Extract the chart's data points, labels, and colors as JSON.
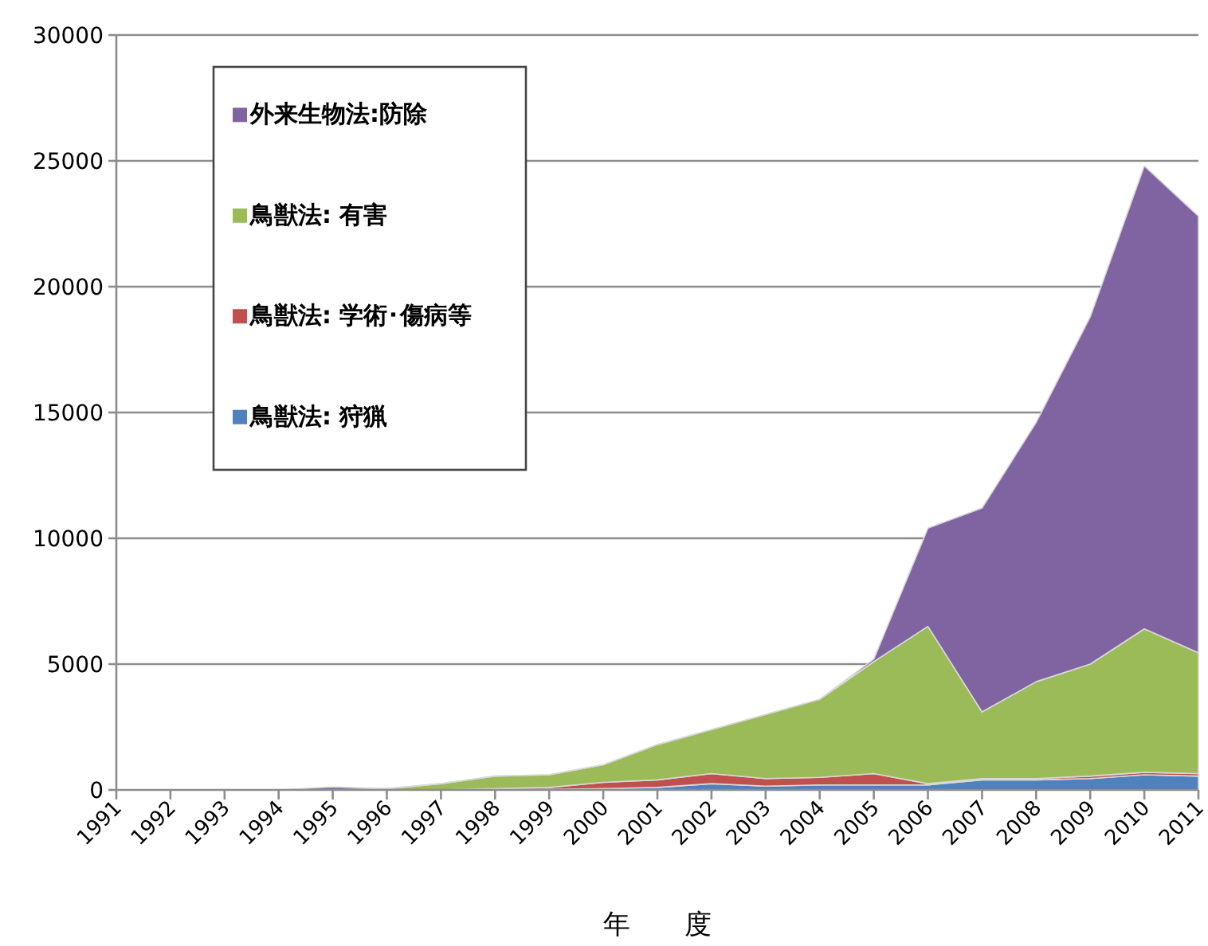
{
  "chart_data": {
    "type": "area",
    "stacked": true,
    "xlabel": "年　　度",
    "categories": [
      "1991",
      "1992",
      "1993",
      "1994",
      "1995",
      "1996",
      "1997",
      "1998",
      "1999",
      "2000",
      "2001",
      "2002",
      "2003",
      "2004",
      "2005",
      "2006",
      "2007",
      "2008",
      "2009",
      "2010",
      "2011"
    ],
    "series": [
      {
        "name": "鳥獣法: 狩猟",
        "color": "#4f81bd",
        "values": [
          0,
          0,
          0,
          0,
          0,
          0,
          0,
          0,
          20,
          50,
          100,
          250,
          150,
          200,
          200,
          200,
          400,
          400,
          450,
          600,
          550
        ]
      },
      {
        "name": "鳥獣法: 学術･傷病等",
        "color": "#c0504d",
        "values": [
          0,
          0,
          0,
          0,
          0,
          0,
          0,
          50,
          80,
          250,
          300,
          400,
          300,
          300,
          450,
          50,
          50,
          50,
          100,
          100,
          100
        ]
      },
      {
        "name": "鳥獣法: 有害",
        "color": "#9bbb59",
        "values": [
          0,
          0,
          0,
          0,
          0,
          50,
          250,
          500,
          500,
          700,
          1400,
          1750,
          2550,
          3100,
          4450,
          6250,
          2650,
          3850,
          4450,
          5700,
          4800
        ]
      },
      {
        "name": "外来生物法:防除",
        "color": "#8064a2",
        "values": [
          0,
          0,
          0,
          0,
          120,
          0,
          0,
          0,
          0,
          0,
          0,
          0,
          0,
          0,
          100,
          3900,
          8100,
          10300,
          13800,
          18400,
          17350
        ]
      }
    ],
    "ylim": [
      0,
      30000
    ],
    "yticks": [
      0,
      5000,
      10000,
      15000,
      20000,
      25000,
      30000
    ],
    "grid": "y",
    "legend": "top left"
  }
}
